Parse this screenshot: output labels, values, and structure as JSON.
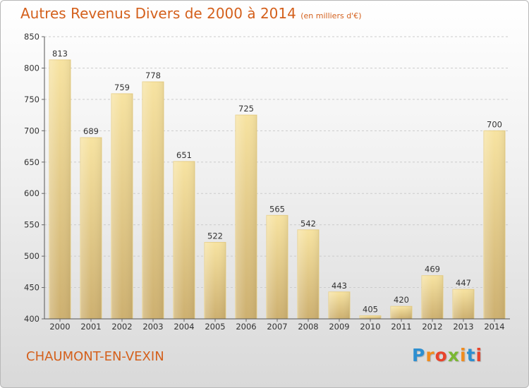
{
  "header": {
    "title": "Autres Revenus Divers de 2000 à 2014",
    "subtitle": "(en milliers d'€)"
  },
  "footer": {
    "commune": "CHAUMONT-EN-VEXIN",
    "logo_text": "Proxiti"
  },
  "colors": {
    "accent": "#d4601c",
    "bar_light": "#f7e3a1",
    "bar_dark": "#cdb070"
  },
  "chart_data": {
    "type": "bar",
    "title": "Autres Revenus Divers de 2000 à 2014",
    "subtitle": "(en milliers d'€)",
    "categories": [
      "2000",
      "2001",
      "2002",
      "2003",
      "2004",
      "2005",
      "2006",
      "2007",
      "2008",
      "2009",
      "2010",
      "2011",
      "2012",
      "2013",
      "2014"
    ],
    "values": [
      813,
      689,
      759,
      778,
      651,
      522,
      725,
      565,
      542,
      443,
      405,
      420,
      469,
      447,
      700
    ],
    "ylim": [
      400,
      850
    ],
    "yticks": [
      400,
      450,
      500,
      550,
      600,
      650,
      700,
      750,
      800,
      850
    ],
    "grid": true,
    "legend": "none"
  }
}
